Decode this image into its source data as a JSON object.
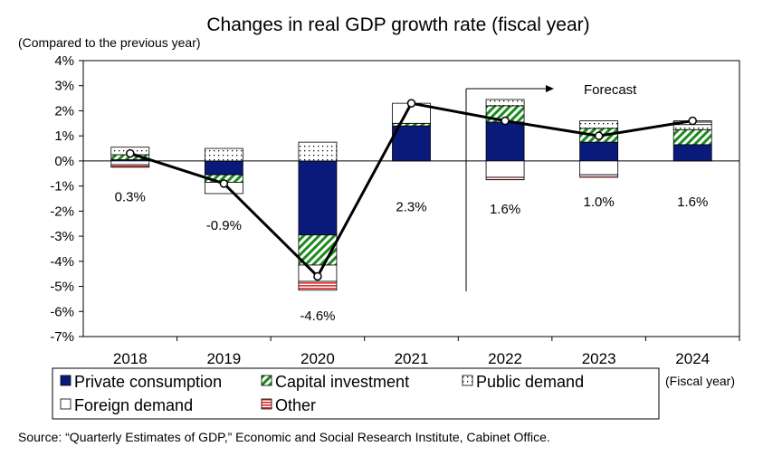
{
  "chart_data": {
    "type": "bar",
    "title": "Changes in real GDP growth rate (fiscal year)",
    "ylabel": "(Compared to the previous year)",
    "xlabel_note": "(Fiscal year)",
    "ylim": [
      -7,
      4
    ],
    "yticks": [
      "4%",
      "3%",
      "2%",
      "1%",
      "0%",
      "-1%",
      "-2%",
      "-3%",
      "-4%",
      "-5%",
      "-6%",
      "-7%"
    ],
    "categories": [
      "2018",
      "2019",
      "2020",
      "2021",
      "2022",
      "2023",
      "2024"
    ],
    "series": [
      {
        "name": "Private consumption",
        "color": "#0a1a7a",
        "pattern": "solid",
        "values": [
          0.05,
          -0.55,
          -2.95,
          1.4,
          1.55,
          0.75,
          0.65
        ]
      },
      {
        "name": "Capital investment",
        "color": "#1a8a1a",
        "pattern": "hatch",
        "values": [
          0.2,
          -0.3,
          -1.2,
          0.1,
          0.65,
          0.55,
          0.6
        ]
      },
      {
        "name": "Public demand",
        "color": "#000000",
        "pattern": "dots",
        "values": [
          0.3,
          0.5,
          0.75,
          0.0,
          0.25,
          0.3,
          0.2
        ]
      },
      {
        "name": "Foreign demand",
        "color": "#ffffff",
        "pattern": "white",
        "values": [
          -0.15,
          -0.45,
          -0.65,
          0.8,
          -0.65,
          -0.55,
          0.1
        ]
      },
      {
        "name": "Other",
        "color": "#e03030",
        "pattern": "hlines",
        "values": [
          -0.1,
          0.0,
          -0.35,
          0.0,
          -0.1,
          -0.1,
          0.05
        ]
      }
    ],
    "line": {
      "name": "Real GDP growth rate",
      "values": [
        0.3,
        -0.9,
        -4.6,
        2.3,
        1.6,
        1.0,
        1.6
      ]
    },
    "data_labels": [
      "0.3%",
      "-0.9%",
      "-4.6%",
      "2.3%",
      "1.6%",
      "1.0%",
      "1.6%"
    ],
    "annotation": "Forecast",
    "grid": false,
    "legend_position": "bottom"
  },
  "source": "Source: “Quarterly Estimates of GDP,” Economic and Social Research Institute, Cabinet Office."
}
